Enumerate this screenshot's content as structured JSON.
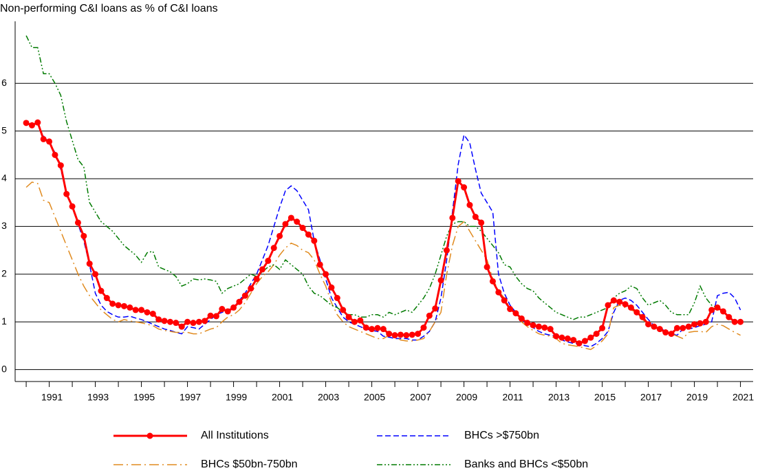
{
  "chart_data": {
    "type": "line",
    "title": "Non-performing C&I loans as % of C&I loans",
    "x": [
      1990,
      1990.25,
      1990.5,
      1990.75,
      1991,
      1991.25,
      1991.5,
      1991.75,
      1992,
      1992.25,
      1992.5,
      1992.75,
      1993,
      1993.25,
      1993.5,
      1993.75,
      1994,
      1994.25,
      1994.5,
      1994.75,
      1995,
      1995.25,
      1995.5,
      1995.75,
      1996,
      1996.25,
      1996.5,
      1996.75,
      1997,
      1997.25,
      1997.5,
      1997.75,
      1998,
      1998.25,
      1998.5,
      1998.75,
      1999,
      1999.25,
      1999.5,
      1999.75,
      2000,
      2000.25,
      2000.5,
      2000.75,
      2001,
      2001.25,
      2001.5,
      2001.75,
      2002,
      2002.25,
      2002.5,
      2002.75,
      2003,
      2003.25,
      2003.5,
      2003.75,
      2004,
      2004.25,
      2004.5,
      2004.75,
      2005,
      2005.25,
      2005.5,
      2005.75,
      2006,
      2006.25,
      2006.5,
      2006.75,
      2007,
      2007.25,
      2007.5,
      2007.75,
      2008,
      2008.25,
      2008.5,
      2008.75,
      2009,
      2009.25,
      2009.5,
      2009.75,
      2010,
      2010.25,
      2010.5,
      2010.75,
      2011,
      2011.25,
      2011.5,
      2011.75,
      2012,
      2012.25,
      2012.5,
      2012.75,
      2013,
      2013.25,
      2013.5,
      2013.75,
      2014,
      2014.25,
      2014.5,
      2014.75,
      2015,
      2015.25,
      2015.5,
      2015.75,
      2016,
      2016.25,
      2016.5,
      2016.75,
      2017,
      2017.25,
      2017.5,
      2017.75,
      2018,
      2018.25,
      2018.5,
      2018.75,
      2019,
      2019.25,
      2019.5,
      2019.75,
      2020,
      2020.25,
      2020.5,
      2020.75,
      2021
    ],
    "series": [
      {
        "name": "All Institutions",
        "color": "#ff0000",
        "style": "solid",
        "marker": "circle",
        "values": [
          5.17,
          5.12,
          5.18,
          4.83,
          4.78,
          4.5,
          4.28,
          3.68,
          3.42,
          3.08,
          2.8,
          2.22,
          2.0,
          1.65,
          1.5,
          1.38,
          1.35,
          1.33,
          1.3,
          1.25,
          1.25,
          1.2,
          1.17,
          1.05,
          1.02,
          1.0,
          0.98,
          0.9,
          1.0,
          0.98,
          1.0,
          1.02,
          1.13,
          1.12,
          1.27,
          1.22,
          1.3,
          1.42,
          1.55,
          1.7,
          1.9,
          2.1,
          2.28,
          2.55,
          2.8,
          3.05,
          3.18,
          3.1,
          2.97,
          2.83,
          2.7,
          2.2,
          2.0,
          1.72,
          1.5,
          1.25,
          1.1,
          1.0,
          1.03,
          0.88,
          0.85,
          0.87,
          0.85,
          0.75,
          0.72,
          0.73,
          0.72,
          0.73,
          0.75,
          0.88,
          1.13,
          1.28,
          1.87,
          2.5,
          3.18,
          3.95,
          3.82,
          3.45,
          3.2,
          3.08,
          2.15,
          1.85,
          1.62,
          1.45,
          1.27,
          1.18,
          1.07,
          0.98,
          0.93,
          0.9,
          0.88,
          0.85,
          0.7,
          0.67,
          0.65,
          0.62,
          0.55,
          0.6,
          0.67,
          0.75,
          0.87,
          1.35,
          1.45,
          1.42,
          1.37,
          1.3,
          1.2,
          1.1,
          0.95,
          0.9,
          0.85,
          0.78,
          0.75,
          0.87,
          0.87,
          0.9,
          0.95,
          0.97,
          1.0,
          1.25,
          1.3,
          1.22,
          1.1,
          1.0,
          1.0
        ]
      },
      {
        "name": "BHCs >$750bn",
        "color": "#0000ff",
        "style": "dashed",
        "values": [
          null,
          null,
          null,
          4.9,
          4.75,
          4.55,
          4.2,
          3.7,
          3.4,
          3.05,
          2.7,
          2.2,
          1.6,
          1.35,
          1.22,
          1.15,
          1.1,
          1.1,
          1.12,
          1.08,
          1.05,
          1.0,
          0.95,
          0.9,
          0.85,
          0.82,
          0.78,
          0.75,
          0.9,
          0.88,
          0.85,
          0.95,
          1.05,
          1.15,
          1.2,
          1.25,
          1.3,
          1.45,
          1.6,
          1.8,
          2.0,
          2.3,
          2.6,
          3.0,
          3.4,
          3.75,
          3.85,
          3.75,
          3.55,
          3.35,
          2.7,
          2.3,
          1.9,
          1.5,
          1.3,
          1.1,
          1.0,
          0.95,
          0.9,
          0.85,
          0.82,
          0.8,
          0.7,
          0.68,
          0.65,
          0.65,
          0.65,
          0.62,
          0.62,
          0.7,
          0.8,
          1.0,
          1.5,
          2.3,
          3.3,
          4.3,
          4.92,
          4.75,
          4.2,
          3.7,
          3.5,
          3.3,
          2.0,
          1.6,
          1.35,
          1.2,
          1.05,
          0.95,
          0.88,
          0.8,
          0.75,
          0.72,
          0.7,
          0.62,
          0.58,
          0.55,
          0.55,
          0.5,
          0.48,
          0.55,
          0.65,
          0.8,
          1.2,
          1.45,
          1.5,
          1.45,
          1.35,
          1.2,
          1.05,
          0.92,
          0.88,
          0.8,
          0.75,
          0.72,
          0.85,
          0.85,
          0.88,
          0.92,
          0.95,
          1.0,
          1.55,
          1.6,
          1.62,
          1.5,
          1.25
        ]
      },
      {
        "name": "BHCs $50bn-750bn",
        "color": "#e08a1e",
        "style": "longdashdot",
        "values": [
          3.82,
          3.93,
          3.9,
          3.55,
          3.5,
          3.2,
          2.9,
          2.6,
          2.3,
          2.0,
          1.75,
          1.55,
          1.4,
          1.25,
          1.15,
          1.05,
          1.0,
          1.05,
          1.02,
          1.0,
          0.98,
          0.95,
          0.92,
          0.85,
          0.82,
          0.8,
          0.78,
          0.78,
          0.78,
          0.75,
          0.75,
          0.8,
          0.85,
          0.88,
          1.0,
          1.1,
          1.15,
          1.25,
          1.4,
          1.6,
          1.8,
          1.95,
          2.05,
          2.2,
          2.4,
          2.55,
          2.65,
          2.6,
          2.5,
          2.45,
          2.3,
          2.0,
          1.75,
          1.4,
          1.15,
          1.0,
          0.9,
          0.85,
          0.8,
          0.75,
          0.7,
          0.65,
          0.65,
          0.72,
          0.7,
          0.62,
          0.6,
          0.6,
          0.62,
          0.65,
          0.8,
          1.0,
          1.2,
          2.0,
          2.6,
          3.0,
          3.1,
          2.9,
          2.7,
          2.5,
          2.3,
          1.9,
          1.65,
          1.5,
          1.3,
          1.15,
          1.0,
          0.9,
          0.82,
          0.75,
          0.72,
          0.7,
          0.65,
          0.55,
          0.52,
          0.5,
          0.48,
          0.45,
          0.42,
          0.5,
          0.6,
          0.75,
          1.3,
          1.35,
          1.3,
          1.25,
          1.2,
          1.05,
          0.95,
          0.88,
          0.85,
          0.8,
          0.75,
          0.7,
          0.65,
          0.78,
          0.8,
          0.8,
          0.78,
          0.9,
          0.95,
          0.92,
          0.85,
          0.78,
          0.72
        ]
      },
      {
        "name": "Banks and BHCs <$50bn",
        "color": "#007a00",
        "style": "dashdotdot",
        "values": [
          7.0,
          6.75,
          6.75,
          6.2,
          6.2,
          6.0,
          5.75,
          5.2,
          4.8,
          4.4,
          4.25,
          3.5,
          3.3,
          3.1,
          3.0,
          2.9,
          2.75,
          2.6,
          2.5,
          2.4,
          2.25,
          2.45,
          2.48,
          2.15,
          2.1,
          2.05,
          1.95,
          1.75,
          1.8,
          1.9,
          1.88,
          1.9,
          1.88,
          1.85,
          1.6,
          1.7,
          1.75,
          1.8,
          1.9,
          2.0,
          1.95,
          2.05,
          2.15,
          2.2,
          2.1,
          2.3,
          2.2,
          2.1,
          2.0,
          1.75,
          1.6,
          1.55,
          1.45,
          1.35,
          1.3,
          1.2,
          1.15,
          1.15,
          1.1,
          1.1,
          1.15,
          1.15,
          1.1,
          1.2,
          1.15,
          1.2,
          1.25,
          1.2,
          1.35,
          1.5,
          1.7,
          2.0,
          2.4,
          2.8,
          3.05,
          3.1,
          3.1,
          3.0,
          3.0,
          2.9,
          2.75,
          2.6,
          2.45,
          2.2,
          2.15,
          1.95,
          1.8,
          1.7,
          1.65,
          1.5,
          1.4,
          1.3,
          1.2,
          1.15,
          1.1,
          1.05,
          1.1,
          1.1,
          1.15,
          1.2,
          1.25,
          1.3,
          1.5,
          1.6,
          1.65,
          1.75,
          1.7,
          1.5,
          1.35,
          1.4,
          1.45,
          1.35,
          1.2,
          1.15,
          1.15,
          1.15,
          1.4,
          1.75,
          1.5,
          1.35,
          1.3,
          1.2,
          null,
          null,
          null
        ]
      }
    ],
    "xlim": [
      1989.52,
      2021.55
    ],
    "xticks": [
      1991,
      1993,
      1995,
      1997,
      1999,
      2001,
      2003,
      2005,
      2007,
      2009,
      2011,
      2013,
      2015,
      2017,
      2019,
      2021
    ],
    "xminorticks": [
      1990,
      1992,
      1994,
      1996,
      1998,
      2000,
      2002,
      2004,
      2006,
      2008,
      2010,
      2012,
      2014,
      2016,
      2018,
      2020
    ],
    "ylim": [
      -0.25,
      7.3
    ],
    "yticks": [
      0,
      1,
      2,
      3,
      4,
      5,
      6
    ],
    "grid": true
  }
}
